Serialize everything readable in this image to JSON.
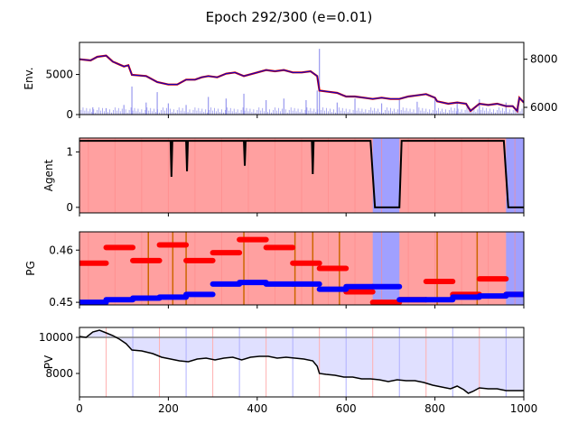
{
  "figure": {
    "title": "Epoch 292/300 (e=0.01)"
  },
  "colors": {
    "price_line": "#0000cc",
    "price_accent": "#dd0000",
    "volume_bar": "#9999ee",
    "agent_long": "#ffa0a0",
    "agent_short": "#a0a0ff",
    "agent_line": "#000000",
    "pg_red": "#ff0000",
    "pg_blue": "#0000ff",
    "switch_line": "#cc6600",
    "pv_line": "#000000",
    "pv_fill": "#e0e0ff",
    "pv_ref": "#808080"
  },
  "chart_data": [
    {
      "id": "env",
      "type": "line",
      "ylabel": "Env.",
      "xlim": [
        0,
        1000
      ],
      "ylim": [
        0,
        9000
      ],
      "yticks": [
        0,
        5000
      ],
      "ylim_right": [
        5700,
        8700
      ],
      "yticks_right": [
        6000,
        8000
      ],
      "price_right_axis": [
        [
          0,
          8000
        ],
        [
          25,
          7950
        ],
        [
          40,
          8100
        ],
        [
          60,
          8150
        ],
        [
          75,
          7900
        ],
        [
          100,
          7700
        ],
        [
          110,
          7750
        ],
        [
          118,
          7350
        ],
        [
          150,
          7300
        ],
        [
          175,
          7050
        ],
        [
          200,
          6950
        ],
        [
          220,
          6950
        ],
        [
          240,
          7150
        ],
        [
          260,
          7150
        ],
        [
          275,
          7250
        ],
        [
          290,
          7300
        ],
        [
          310,
          7250
        ],
        [
          330,
          7400
        ],
        [
          350,
          7450
        ],
        [
          370,
          7300
        ],
        [
          390,
          7400
        ],
        [
          420,
          7550
        ],
        [
          440,
          7500
        ],
        [
          460,
          7550
        ],
        [
          480,
          7450
        ],
        [
          500,
          7450
        ],
        [
          520,
          7500
        ],
        [
          535,
          7300
        ],
        [
          540,
          6700
        ],
        [
          560,
          6650
        ],
        [
          580,
          6600
        ],
        [
          600,
          6450
        ],
        [
          620,
          6450
        ],
        [
          640,
          6400
        ],
        [
          660,
          6350
        ],
        [
          680,
          6400
        ],
        [
          700,
          6350
        ],
        [
          720,
          6350
        ],
        [
          740,
          6450
        ],
        [
          760,
          6500
        ],
        [
          780,
          6550
        ],
        [
          800,
          6400
        ],
        [
          805,
          6250
        ],
        [
          830,
          6150
        ],
        [
          850,
          6200
        ],
        [
          870,
          6150
        ],
        [
          880,
          5850
        ],
        [
          900,
          6150
        ],
        [
          920,
          6100
        ],
        [
          940,
          6150
        ],
        [
          960,
          6050
        ],
        [
          975,
          6050
        ],
        [
          985,
          5850
        ],
        [
          990,
          6400
        ],
        [
          1000,
          6200
        ]
      ],
      "volume_note": "dense spikes",
      "volume_spikes": [
        [
          0,
          600
        ],
        [
          30,
          900
        ],
        [
          60,
          800
        ],
        [
          100,
          1200
        ],
        [
          118,
          3500
        ],
        [
          150,
          1500
        ],
        [
          175,
          2800
        ],
        [
          200,
          1400
        ],
        [
          240,
          1200
        ],
        [
          290,
          2200
        ],
        [
          330,
          2000
        ],
        [
          370,
          2600
        ],
        [
          420,
          1800
        ],
        [
          460,
          2000
        ],
        [
          510,
          1800
        ],
        [
          535,
          3000
        ],
        [
          540,
          8200
        ],
        [
          580,
          1500
        ],
        [
          620,
          2000
        ],
        [
          680,
          1400
        ],
        [
          720,
          1800
        ],
        [
          760,
          1600
        ],
        [
          800,
          2100
        ],
        [
          850,
          1500
        ],
        [
          900,
          1900
        ],
        [
          960,
          1500
        ]
      ]
    },
    {
      "id": "agent",
      "type": "line",
      "ylabel": "Agent",
      "xlim": [
        0,
        1000
      ],
      "ylim": [
        -0.1,
        1.25
      ],
      "yticks": [
        0,
        1
      ],
      "action": [
        [
          0,
          1.2
        ],
        [
          205,
          1.2
        ],
        [
          207,
          0.55
        ],
        [
          209,
          1.2
        ],
        [
          240,
          1.2
        ],
        [
          242,
          0.65
        ],
        [
          244,
          1.2
        ],
        [
          370,
          1.2
        ],
        [
          372,
          0.75
        ],
        [
          374,
          1.2
        ],
        [
          523,
          1.2
        ],
        [
          525,
          0.6
        ],
        [
          527,
          1.2
        ],
        [
          655,
          1.2
        ],
        [
          665,
          0
        ],
        [
          720,
          0
        ],
        [
          725,
          1.2
        ],
        [
          955,
          1.2
        ],
        [
          965,
          0
        ],
        [
          1000,
          0
        ]
      ],
      "short_spans": [
        [
          660,
          720
        ],
        [
          960,
          1000
        ]
      ]
    },
    {
      "id": "pg",
      "type": "scatter",
      "ylabel": "PG",
      "xlim": [
        0,
        1000
      ],
      "ylim": [
        0.4495,
        0.4635
      ],
      "yticks": [
        0.45,
        0.46
      ],
      "ytick_labels": [
        "0.45",
        "0.46"
      ],
      "red_segments": [
        [
          0,
          60,
          0.4575
        ],
        [
          60,
          120,
          0.4605
        ],
        [
          120,
          180,
          0.458
        ],
        [
          180,
          240,
          0.461
        ],
        [
          240,
          300,
          0.458
        ],
        [
          300,
          360,
          0.4595
        ],
        [
          360,
          420,
          0.462
        ],
        [
          420,
          480,
          0.4605
        ],
        [
          480,
          540,
          0.4575
        ],
        [
          540,
          600,
          0.4565
        ],
        [
          600,
          660,
          0.452
        ],
        [
          660,
          720,
          0.45
        ],
        [
          720,
          780,
          0.4505
        ],
        [
          780,
          840,
          0.454
        ],
        [
          840,
          900,
          0.4515
        ],
        [
          900,
          960,
          0.4545
        ],
        [
          960,
          1000,
          0.4515
        ]
      ],
      "blue_segments": [
        [
          0,
          60,
          0.45
        ],
        [
          60,
          120,
          0.4505
        ],
        [
          120,
          180,
          0.4508
        ],
        [
          180,
          240,
          0.451
        ],
        [
          240,
          300,
          0.4515
        ],
        [
          300,
          360,
          0.4535
        ],
        [
          360,
          420,
          0.4538
        ],
        [
          420,
          480,
          0.4535
        ],
        [
          480,
          540,
          0.4535
        ],
        [
          540,
          600,
          0.4525
        ],
        [
          600,
          660,
          0.453
        ],
        [
          660,
          720,
          0.453
        ],
        [
          720,
          780,
          0.4505
        ],
        [
          780,
          840,
          0.4505
        ],
        [
          840,
          900,
          0.451
        ],
        [
          900,
          960,
          0.4512
        ],
        [
          960,
          1000,
          0.4515
        ]
      ],
      "switch_x": [
        155,
        210,
        240,
        370,
        485,
        525,
        585,
        805,
        895
      ],
      "short_spans": [
        [
          660,
          720
        ],
        [
          960,
          1000
        ]
      ]
    },
    {
      "id": "pv",
      "type": "line",
      "ylabel": "PV",
      "xlabel_ticks": [
        0,
        200,
        400,
        600,
        800,
        1000
      ],
      "xlim": [
        0,
        1000
      ],
      "ylim": [
        6700,
        10550
      ],
      "yticks": [
        8000,
        10000
      ],
      "reference": 10000,
      "value": [
        [
          0,
          10050
        ],
        [
          15,
          10000
        ],
        [
          30,
          10300
        ],
        [
          45,
          10400
        ],
        [
          60,
          10250
        ],
        [
          75,
          10100
        ],
        [
          90,
          9900
        ],
        [
          105,
          9650
        ],
        [
          118,
          9300
        ],
        [
          140,
          9250
        ],
        [
          165,
          9100
        ],
        [
          185,
          8900
        ],
        [
          205,
          8800
        ],
        [
          225,
          8700
        ],
        [
          245,
          8650
        ],
        [
          265,
          8800
        ],
        [
          285,
          8850
        ],
        [
          305,
          8750
        ],
        [
          325,
          8850
        ],
        [
          345,
          8900
        ],
        [
          365,
          8750
        ],
        [
          385,
          8900
        ],
        [
          405,
          8950
        ],
        [
          425,
          8950
        ],
        [
          445,
          8850
        ],
        [
          465,
          8900
        ],
        [
          485,
          8850
        ],
        [
          505,
          8800
        ],
        [
          525,
          8700
        ],
        [
          535,
          8400
        ],
        [
          540,
          8000
        ],
        [
          555,
          7950
        ],
        [
          575,
          7900
        ],
        [
          595,
          7800
        ],
        [
          615,
          7800
        ],
        [
          635,
          7700
        ],
        [
          655,
          7700
        ],
        [
          675,
          7650
        ],
        [
          695,
          7550
        ],
        [
          715,
          7650
        ],
        [
          735,
          7600
        ],
        [
          755,
          7600
        ],
        [
          775,
          7500
        ],
        [
          795,
          7350
        ],
        [
          815,
          7250
        ],
        [
          835,
          7150
        ],
        [
          850,
          7300
        ],
        [
          865,
          7100
        ],
        [
          875,
          6900
        ],
        [
          885,
          7000
        ],
        [
          900,
          7200
        ],
        [
          920,
          7150
        ],
        [
          940,
          7150
        ],
        [
          960,
          7050
        ],
        [
          980,
          7050
        ],
        [
          1000,
          7050
        ]
      ]
    }
  ]
}
